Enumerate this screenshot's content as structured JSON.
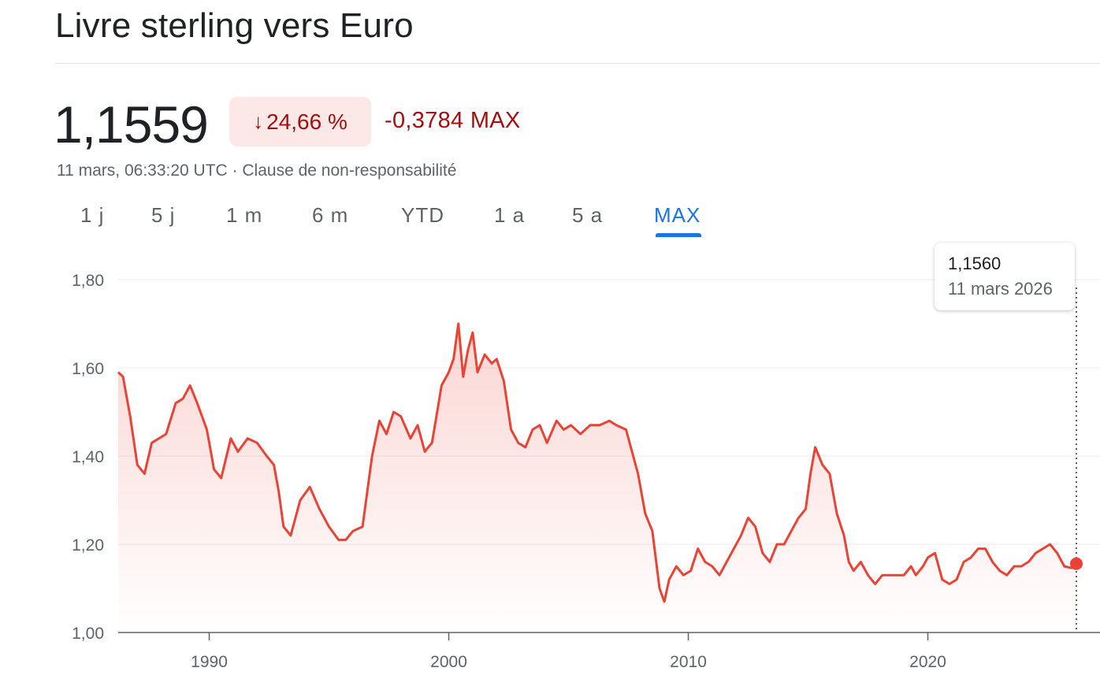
{
  "header": {
    "title": "Livre sterling vers Euro",
    "price": "1,1559",
    "change_pct": "24,66 %",
    "change_arrow": "↓",
    "change_abs": "-0,3784 MAX",
    "timestamp": "11 mars, 06:33:20 UTC",
    "separator": " · ",
    "disclaimer": "Clause de non-responsabilité"
  },
  "tabs": [
    {
      "label": "1 j"
    },
    {
      "label": "5 j"
    },
    {
      "label": "1 m"
    },
    {
      "label": "6 m"
    },
    {
      "label": "YTD"
    },
    {
      "label": "1 a"
    },
    {
      "label": "5 a"
    },
    {
      "label": "MAX"
    }
  ],
  "active_tab": "MAX",
  "tooltip": {
    "value": "1,1560",
    "date": "11 mars 2026"
  },
  "colors": {
    "line": "#ea4335",
    "down": "#a50e0e",
    "badge_bg": "#fce8e6",
    "active_tab": "#1a73e8"
  },
  "chart_data": {
    "type": "area",
    "title": "",
    "xlabel": "",
    "ylabel": "",
    "xlim": [
      1986.2,
      2026.2
    ],
    "ylim": [
      1.0,
      1.8
    ],
    "y_ticks": [
      1.0,
      1.2,
      1.4,
      1.6,
      1.8
    ],
    "y_tick_labels": [
      "1,00",
      "1,20",
      "1,40",
      "1,60",
      "1,80"
    ],
    "x_ticks": [
      1990,
      2000,
      2010,
      2020
    ],
    "x_tick_labels": [
      "1990",
      "2000",
      "2010",
      "2020"
    ],
    "grid": true,
    "legend": "none",
    "series": [
      {
        "x": [
          1986.2,
          1986.4,
          1986.7,
          1987.0,
          1987.3,
          1987.6,
          1987.9,
          1988.2,
          1988.6,
          1988.9,
          1989.2,
          1989.5,
          1989.9,
          1990.2,
          1990.5,
          1990.9,
          1991.2,
          1991.6,
          1992.0,
          1992.4,
          1992.7,
          1992.9,
          1993.1,
          1993.4,
          1993.8,
          1994.2,
          1994.6,
          1995.0,
          1995.4,
          1995.7,
          1996.0,
          1996.4,
          1996.8,
          1997.1,
          1997.4,
          1997.7,
          1998.0,
          1998.4,
          1998.7,
          1999.0,
          1999.3,
          1999.7,
          2000.0,
          2000.2,
          2000.4,
          2000.6,
          2000.8,
          2001.0,
          2001.2,
          2001.5,
          2001.8,
          2002.0,
          2002.3,
          2002.6,
          2002.9,
          2003.2,
          2003.5,
          2003.8,
          2004.1,
          2004.5,
          2004.8,
          2005.1,
          2005.5,
          2005.9,
          2006.3,
          2006.7,
          2007.0,
          2007.4,
          2007.7,
          2007.9,
          2008.2,
          2008.5,
          2008.8,
          2009.0,
          2009.2,
          2009.5,
          2009.8,
          2010.1,
          2010.4,
          2010.7,
          2011.0,
          2011.3,
          2011.6,
          2011.9,
          2012.2,
          2012.5,
          2012.8,
          2013.1,
          2013.4,
          2013.7,
          2014.0,
          2014.3,
          2014.6,
          2014.9,
          2015.1,
          2015.3,
          2015.6,
          2015.9,
          2016.2,
          2016.5,
          2016.7,
          2016.9,
          2017.2,
          2017.5,
          2017.8,
          2018.1,
          2018.4,
          2018.7,
          2019.0,
          2019.3,
          2019.5,
          2019.8,
          2020.0,
          2020.3,
          2020.6,
          2020.9,
          2021.2,
          2021.5,
          2021.8,
          2022.1,
          2022.4,
          2022.7,
          2023.0,
          2023.3,
          2023.6,
          2023.9,
          2024.2,
          2024.5,
          2024.8,
          2025.1,
          2025.4,
          2025.7,
          2026.0,
          2026.2
        ],
        "y": [
          1.59,
          1.58,
          1.49,
          1.38,
          1.36,
          1.43,
          1.44,
          1.45,
          1.52,
          1.53,
          1.56,
          1.52,
          1.46,
          1.37,
          1.35,
          1.44,
          1.41,
          1.44,
          1.43,
          1.4,
          1.38,
          1.32,
          1.24,
          1.22,
          1.3,
          1.33,
          1.28,
          1.24,
          1.21,
          1.21,
          1.23,
          1.24,
          1.4,
          1.48,
          1.45,
          1.5,
          1.49,
          1.44,
          1.47,
          1.41,
          1.43,
          1.56,
          1.59,
          1.62,
          1.7,
          1.58,
          1.64,
          1.68,
          1.59,
          1.63,
          1.61,
          1.62,
          1.57,
          1.46,
          1.43,
          1.42,
          1.46,
          1.47,
          1.43,
          1.48,
          1.46,
          1.47,
          1.45,
          1.47,
          1.47,
          1.48,
          1.47,
          1.46,
          1.4,
          1.36,
          1.27,
          1.23,
          1.1,
          1.07,
          1.12,
          1.15,
          1.13,
          1.14,
          1.19,
          1.16,
          1.15,
          1.13,
          1.16,
          1.19,
          1.22,
          1.26,
          1.24,
          1.18,
          1.16,
          1.2,
          1.2,
          1.23,
          1.26,
          1.28,
          1.36,
          1.42,
          1.38,
          1.36,
          1.27,
          1.22,
          1.16,
          1.14,
          1.16,
          1.13,
          1.11,
          1.13,
          1.13,
          1.13,
          1.13,
          1.15,
          1.13,
          1.15,
          1.17,
          1.18,
          1.12,
          1.11,
          1.12,
          1.16,
          1.17,
          1.19,
          1.19,
          1.16,
          1.14,
          1.13,
          1.15,
          1.15,
          1.16,
          1.18,
          1.19,
          1.2,
          1.18,
          1.15,
          1.146,
          1.156
        ]
      }
    ]
  }
}
